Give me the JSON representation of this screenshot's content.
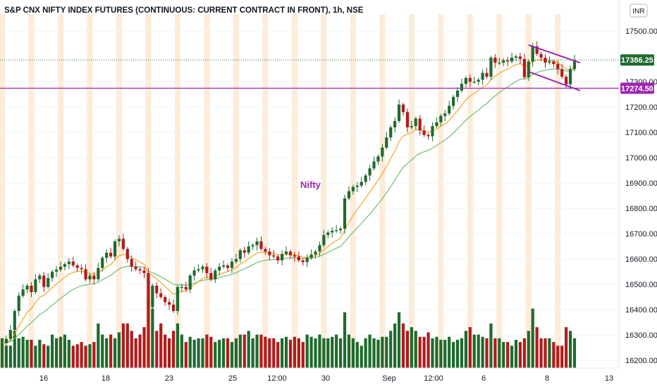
{
  "title": "S&P CNX NIFTY INDEX FUTURES (CONTINUOUS: CURRENT CONTRACT IN FRONT), 1h, NSE",
  "currency": "INR",
  "colors": {
    "up": "#1e6b2e",
    "down": "#b01c1c",
    "vol_up": "#1e6b2e",
    "vol_down": "#b01c1c",
    "ema_fast": "#f5a623",
    "ema_slow": "#6fbf73",
    "annotation": "#9c27b0",
    "session": "#fde3c8",
    "grid": "#f0f3fa"
  },
  "price_tag": {
    "value": "17386.25",
    "color": "#1e6b2e"
  },
  "level_tag": {
    "value": "17274.50",
    "color": "#9c27b0"
  },
  "annotation": "Nifty",
  "chart_data": {
    "type": "candlestick",
    "title": "S&P CNX NIFTY INDEX FUTURES (CONTINUOUS: CURRENT CONTRACT IN FRONT), 1h, NSE",
    "y_ticks": [
      16200,
      16300,
      16400,
      16500,
      16600,
      16700,
      16800,
      16900,
      17000,
      17100,
      17200,
      17300,
      17500
    ],
    "ylim": [
      16170,
      17545
    ],
    "x_ticks": [
      "16",
      "18",
      "23",
      "25",
      "12:00",
      "30",
      "Sep",
      "12:00",
      "6",
      "8",
      "13"
    ],
    "last_price": 17386.25,
    "horizontal_level": 17274.5,
    "closes": [
      16268,
      16285,
      16320,
      16395,
      16455,
      16480,
      16495,
      16470,
      16520,
      16535,
      16490,
      16525,
      16550,
      16558,
      16570,
      16580,
      16590,
      16575,
      16565,
      16560,
      16520,
      16535,
      16520,
      16565,
      16605,
      16625,
      16610,
      16670,
      16680,
      16640,
      16600,
      16570,
      16560,
      16555,
      16545,
      16410,
      16495,
      16465,
      16450,
      16430,
      16420,
      16395,
      16490,
      16490,
      16480,
      16535,
      16555,
      16560,
      16570,
      16545,
      16520,
      16555,
      16570,
      16575,
      16565,
      16590,
      16600,
      16635,
      16625,
      16650,
      16655,
      16670,
      16640,
      16630,
      16615,
      16610,
      16595,
      16620,
      16630,
      16615,
      16610,
      16595,
      16588,
      16605,
      16618,
      16630,
      16655,
      16695,
      16705,
      16712,
      16714,
      16720,
      16840,
      16868,
      16885,
      16890,
      16905,
      16930,
      16958,
      16985,
      17005,
      17040,
      17080,
      17120,
      17145,
      17210,
      17180,
      17120,
      17125,
      17155,
      17108,
      17090,
      17085,
      17125,
      17140,
      17165,
      17175,
      17205,
      17240,
      17265,
      17292,
      17315,
      17300,
      17300,
      17308,
      17335,
      17320,
      17395,
      17375,
      17375,
      17385,
      17380,
      17395,
      17400,
      17390,
      17318,
      17380,
      17440,
      17410,
      17395,
      17375,
      17380,
      17370,
      17350,
      17320,
      17290,
      17350,
      17386
    ],
    "volumes": [
      40,
      30,
      30,
      50,
      40,
      42,
      38,
      38,
      30,
      38,
      32,
      30,
      45,
      40,
      42,
      45,
      38,
      30,
      32,
      35,
      30,
      32,
      35,
      60,
      45,
      40,
      45,
      40,
      48,
      60,
      60,
      50,
      40,
      45,
      55,
      90,
      80,
      50,
      60,
      45,
      40,
      50,
      60,
      45,
      35,
      42,
      38,
      40,
      40,
      45,
      42,
      35,
      38,
      40,
      40,
      35,
      40,
      45,
      45,
      50,
      40,
      45,
      45,
      42,
      40,
      40,
      35,
      40,
      42,
      38,
      42,
      40,
      35,
      45,
      42,
      40,
      45,
      40,
      40,
      42,
      45,
      40,
      75,
      45,
      40,
      35,
      30,
      40,
      45,
      40,
      38,
      42,
      42,
      50,
      60,
      75,
      60,
      50,
      55,
      50,
      42,
      42,
      48,
      40,
      42,
      38,
      38,
      42,
      35,
      38,
      40,
      50,
      55,
      45,
      45,
      42,
      40,
      60,
      40,
      40,
      35,
      35,
      30,
      38,
      35,
      40,
      50,
      80,
      55,
      40,
      40,
      40,
      35,
      30,
      30,
      55,
      50,
      40
    ]
  }
}
